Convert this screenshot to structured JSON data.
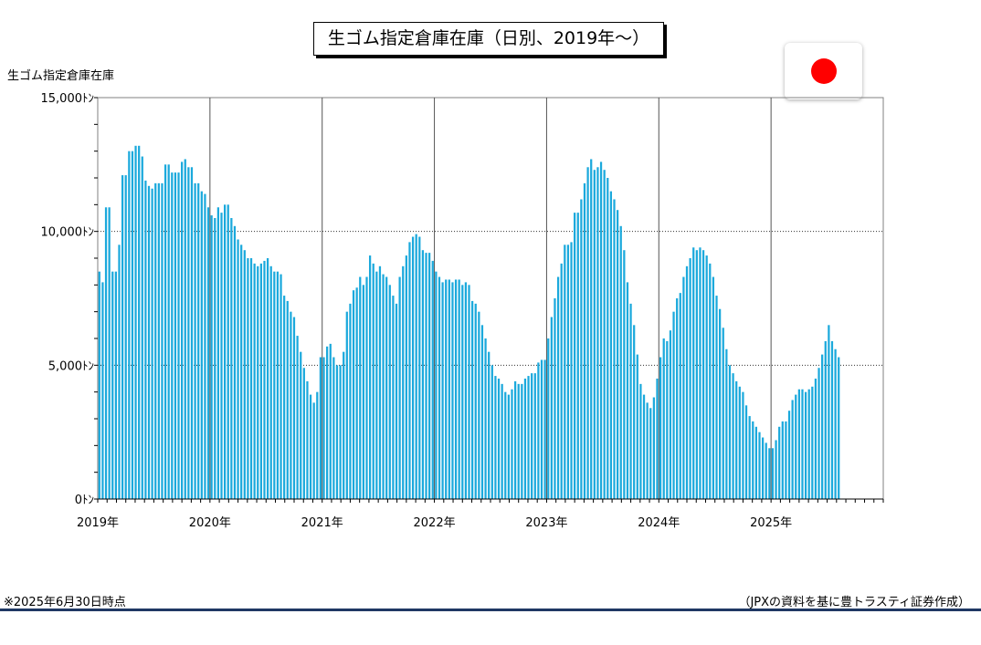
{
  "title": "生ゴム指定倉庫在庫（日別、2019年～）",
  "ylabel": "生ゴム指定倉庫在庫",
  "footnote": "※2025年6月30日時点",
  "source": "（JPXの資料を基に豊トラスティ証券作成）",
  "flag_icon": "japan-flag-icon",
  "colors": {
    "bar": "#1ba9dc",
    "flag_red": "#ff0000",
    "rule": "#1f3864"
  },
  "chart_data": {
    "type": "bar",
    "title": "生ゴム指定倉庫在庫（日別、2019年～）",
    "ylabel": "生ゴム指定倉庫在庫",
    "ylim": [
      0,
      15000
    ],
    "yticks": [
      0,
      5000,
      10000,
      15000
    ],
    "ytick_labels": [
      "0ﾄﾝ",
      "5,000ﾄﾝ",
      "10,000ﾄﾝ",
      "15,000ﾄﾝ"
    ],
    "xticks": [
      "2019年",
      "2020年",
      "2021年",
      "2022年",
      "2023年",
      "2024年",
      "2025年"
    ],
    "grid": true,
    "values": [
      8500,
      8100,
      10900,
      10900,
      8500,
      8500,
      9500,
      12100,
      12100,
      13000,
      13000,
      13200,
      13200,
      12800,
      11900,
      11700,
      11600,
      11800,
      11800,
      11800,
      12500,
      12500,
      12200,
      12200,
      12200,
      12600,
      12700,
      12400,
      12400,
      11800,
      11800,
      11500,
      11400,
      10900,
      10600,
      10500,
      10900,
      10700,
      11000,
      11000,
      10500,
      10200,
      9700,
      9500,
      9300,
      9000,
      9000,
      8800,
      8700,
      8800,
      8900,
      9000,
      8700,
      8500,
      8500,
      8400,
      7600,
      7400,
      7000,
      6800,
      6100,
      5500,
      4900,
      4400,
      3900,
      3600,
      4000,
      5300,
      5300,
      5700,
      5800,
      5300,
      5000,
      5000,
      5500,
      7000,
      7300,
      7800,
      7900,
      8300,
      8000,
      8300,
      9100,
      8800,
      8500,
      8700,
      8400,
      8300,
      8000,
      7600,
      7300,
      8300,
      8700,
      9100,
      9600,
      9800,
      9900,
      9800,
      9300,
      9200,
      9200,
      8900,
      8500,
      8300,
      8100,
      8200,
      8200,
      8100,
      8200,
      8200,
      8000,
      8100,
      8000,
      7400,
      7300,
      7000,
      6500,
      6000,
      5500,
      5000,
      4600,
      4500,
      4300,
      4000,
      3900,
      4100,
      4400,
      4300,
      4300,
      4500,
      4600,
      4700,
      4700,
      5100,
      5200,
      5200,
      6000,
      6800,
      7500,
      8300,
      8800,
      9500,
      9500,
      9600,
      10700,
      10700,
      11200,
      11800,
      12400,
      12700,
      12300,
      12400,
      12600,
      12300,
      12000,
      11500,
      11200,
      10800,
      10200,
      9300,
      8100,
      7300,
      6500,
      5400,
      4300,
      3900,
      3600,
      3400,
      3800,
      4500,
      5300,
      6000,
      5900,
      6300,
      7000,
      7500,
      7700,
      8300,
      8700,
      9000,
      9400,
      9300,
      9400,
      9300,
      9100,
      8800,
      8300,
      7600,
      7100,
      6400,
      5600,
      5000,
      4700,
      4400,
      4200,
      4000,
      3500,
      3100,
      2900,
      2700,
      2500,
      2300,
      2100,
      1900,
      1900,
      2200,
      2700,
      2900,
      2900,
      3300,
      3700,
      3900,
      4100,
      4100,
      4000,
      4100,
      4200,
      4500,
      4900,
      5400,
      5900,
      6500,
      5900,
      5600,
      5300
    ]
  }
}
